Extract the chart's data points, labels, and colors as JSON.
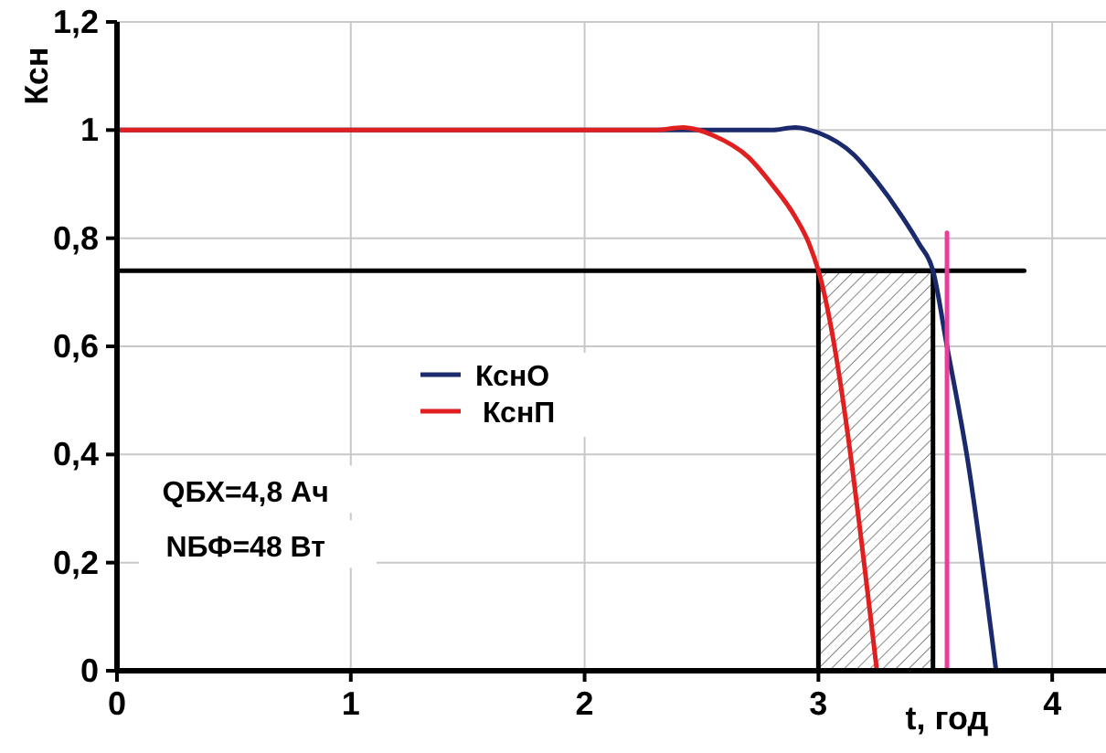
{
  "chart_data": {
    "type": "line",
    "ylabel": "Ксн",
    "xlabel": "t, год",
    "xlim": [
      0,
      4.23
    ],
    "ylim": [
      0,
      1.2
    ],
    "xticks": [
      0,
      1,
      2,
      3,
      4
    ],
    "yticks": [
      0,
      {
        "value": 0.2,
        "label": "0,2"
      },
      {
        "value": 0.4,
        "label": "0,4"
      },
      {
        "value": 0.6,
        "label": "0,6"
      },
      {
        "value": 0.8,
        "label": "0,8"
      },
      1,
      {
        "value": 1.2,
        "label": "1,2"
      }
    ],
    "grid": true,
    "legend": "center left",
    "marker": "none",
    "line_style": "solid",
    "series": [
      {
        "type": "area",
        "color": "#000000",
        "x": [
          3.0,
          3.49
        ],
        "values": [
          0.74,
          0.74
        ]
      },
      {
        "type": "line",
        "color": "#000000",
        "x": [
          0,
          3.88
        ],
        "values": [
          0.74,
          0.74
        ]
      },
      {
        "name": "КснО",
        "color": "#1a2a6c",
        "x": [
          0,
          2.4,
          2.8,
          2.9,
          3.0,
          3.15,
          3.25,
          3.35,
          3.43,
          3.49,
          3.55,
          3.64,
          3.76
        ],
        "values": [
          1,
          1,
          1,
          1.005,
          0.995,
          0.955,
          0.905,
          0.845,
          0.79,
          0.74,
          0.6,
          0.385,
          0
        ]
      },
      {
        "name": "КснП",
        "color": "#e02020",
        "x": [
          0,
          2.3,
          2.42,
          2.55,
          2.7,
          2.8,
          2.9,
          2.96,
          3.0,
          3.25
        ],
        "values": [
          1,
          1,
          1.005,
          0.99,
          0.95,
          0.9,
          0.84,
          0.79,
          0.74,
          0
        ]
      },
      {
        "type": "line",
        "color": "#e8409a",
        "x": [
          3.55,
          3.55
        ],
        "values": [
          0,
          0.81
        ]
      }
    ],
    "annotations": [
      "QБХ=4,8 Ач",
      "NБФ=48 Вт"
    ]
  }
}
